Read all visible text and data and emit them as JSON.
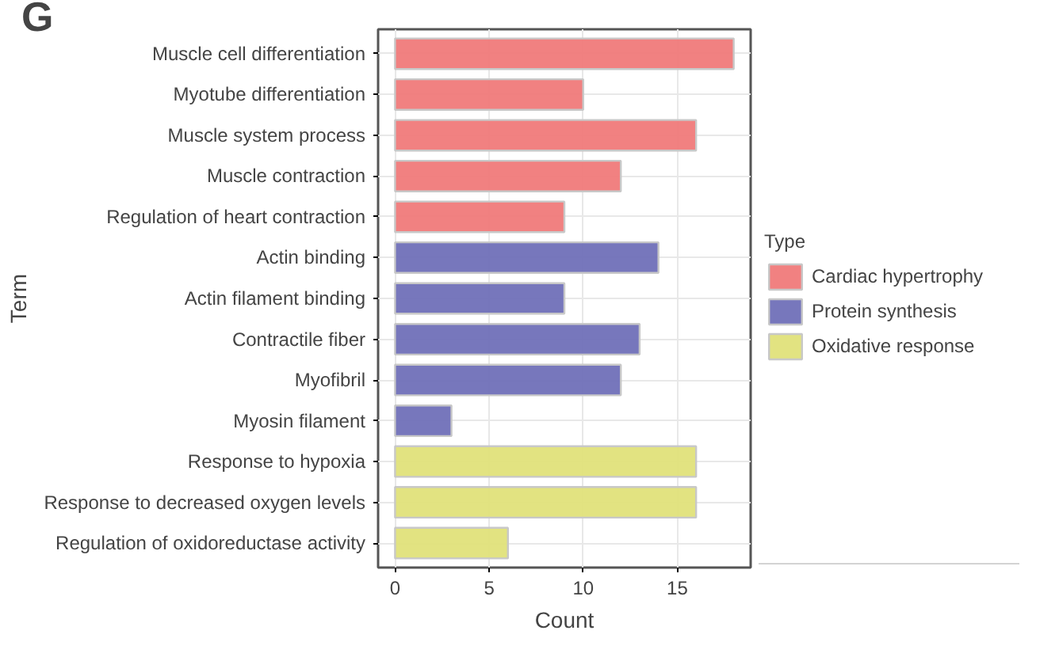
{
  "chart_data": {
    "type": "bar",
    "orientation": "horizontal",
    "title": "G",
    "xlabel": "Count",
    "ylabel": "Term",
    "legend_title": "Type",
    "legend": "right",
    "grid": true,
    "categories": [
      "Muscle cell differentiation",
      "Myotube differentiation",
      "Muscle system process",
      "Muscle contraction",
      "Regulation of heart contraction",
      "Actin binding",
      "Actin filament binding",
      "Contractile fiber",
      "Myofibril",
      "Myosin filament",
      "Response to hypoxia",
      "Response to decreased oxygen levels",
      "Regulation of oxidoreductase activity"
    ],
    "series": [
      {
        "name": "Cardiac hypertrophy",
        "color": "#f07a7a",
        "values": [
          18,
          10,
          16,
          12,
          9,
          null,
          null,
          null,
          null,
          null,
          null,
          null,
          null
        ]
      },
      {
        "name": "Protein synthesis",
        "color": "#7070b8",
        "values": [
          null,
          null,
          null,
          null,
          null,
          14,
          9,
          13,
          12,
          3,
          null,
          null,
          null
        ]
      },
      {
        "name": "Oxidative response",
        "color": "#e0e27a",
        "values": [
          null,
          null,
          null,
          null,
          null,
          null,
          null,
          null,
          null,
          null,
          16,
          16,
          6
        ]
      }
    ],
    "xlim": [
      -0.9,
      18.9
    ],
    "xticks": [
      0,
      5,
      10,
      15
    ]
  }
}
